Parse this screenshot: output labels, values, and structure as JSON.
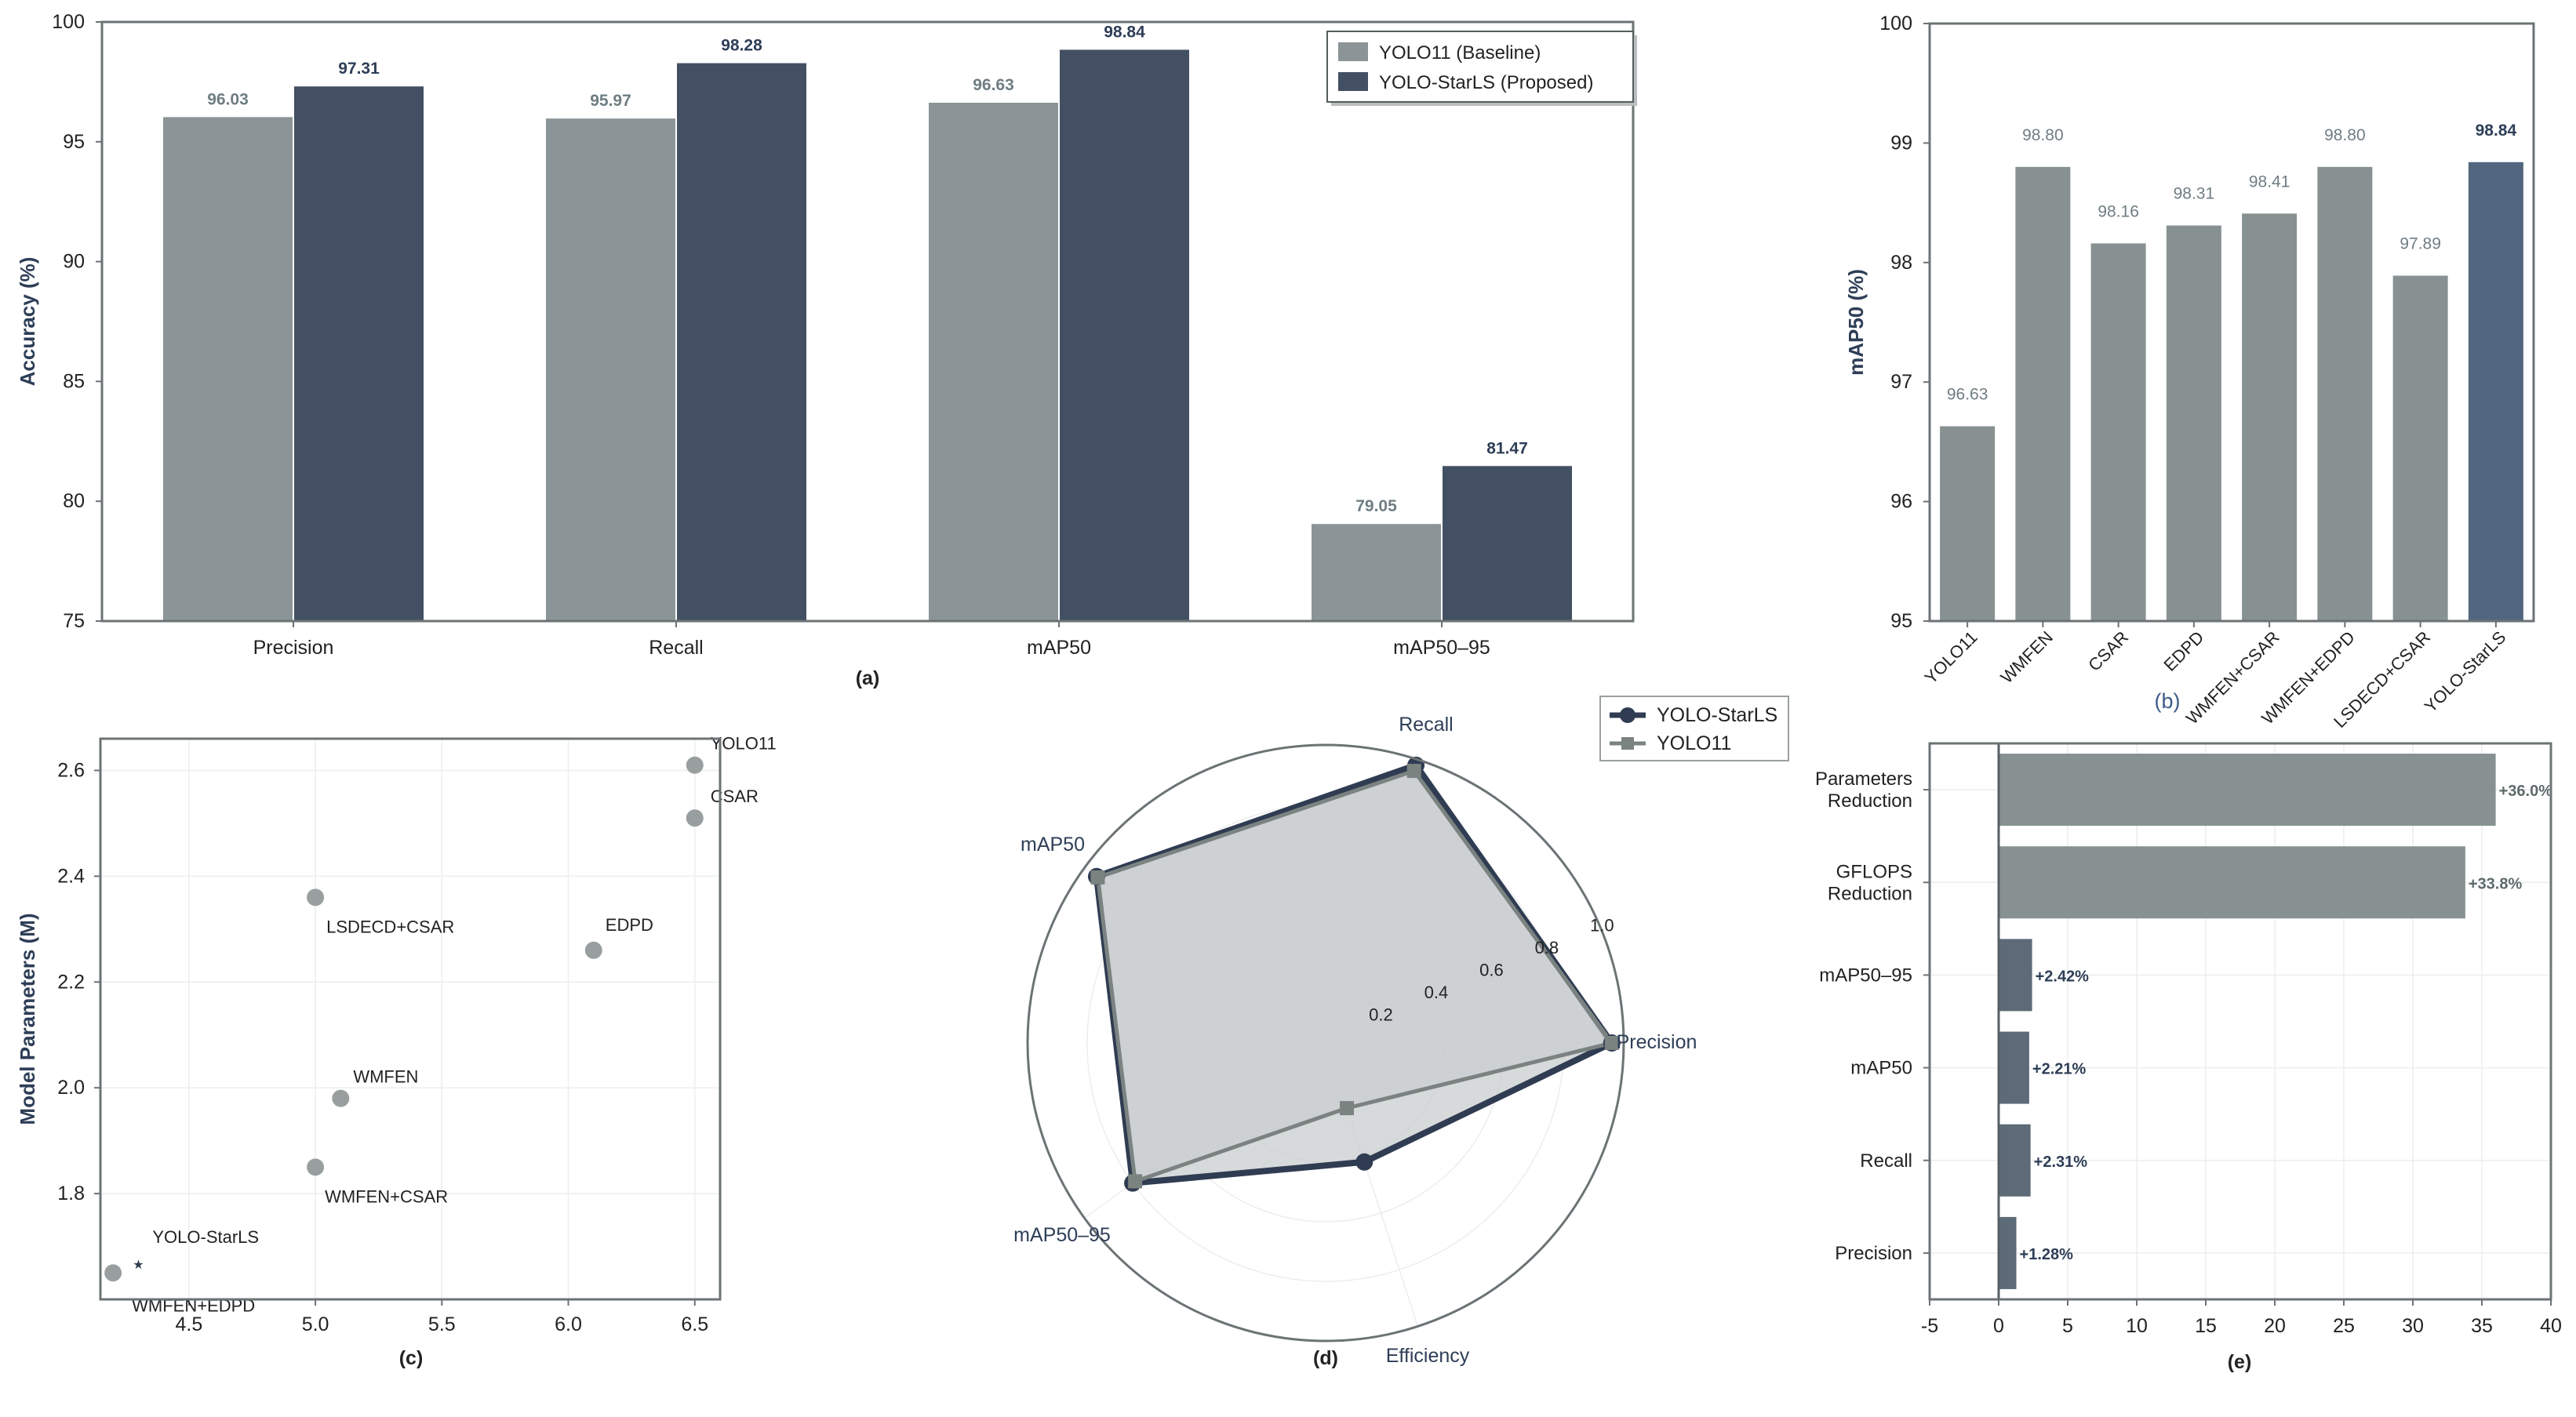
{
  "colors": {
    "baseline": "#8b9497",
    "proposed": "#434f62",
    "ablation": "#879191",
    "highlight": "#52667f",
    "axis_label": "#2e3e57",
    "frame": "#6b7375",
    "grid": "#eceeee",
    "radar_fill": "#c6cacc",
    "radar_yolo11": "#7b8381",
    "radar_starls": "#2f3c52",
    "bar_small": "#5d6a78",
    "scatter_point": "#999f9f"
  },
  "chart_data": [
    {
      "id": "a",
      "type": "bar",
      "caption": "(a)",
      "ylabel": "Accuracy (%)",
      "ylim": [
        75,
        100
      ],
      "yticks": [
        75,
        80,
        85,
        90,
        95,
        100
      ],
      "categories": [
        "Precision",
        "Recall",
        "mAP50",
        "mAP50–95"
      ],
      "series": [
        {
          "name": "YOLO11 (Baseline)",
          "values": [
            96.03,
            95.97,
            96.63,
            79.05
          ],
          "labels": [
            "96.03",
            "95.97",
            "96.63",
            "79.05"
          ]
        },
        {
          "name": "YOLO-StarLS (Proposed)",
          "values": [
            97.31,
            98.28,
            98.84,
            81.47
          ],
          "labels": [
            "97.31",
            "98.28",
            "98.84",
            "81.47"
          ]
        }
      ],
      "legend": "top-right"
    },
    {
      "id": "b",
      "type": "bar",
      "caption": "(b)",
      "ylabel": "mAP50 (%)",
      "ylim": [
        95,
        100
      ],
      "yticks": [
        95,
        96,
        97,
        98,
        99,
        100
      ],
      "categories": [
        "YOLO11",
        "WMFEN",
        "CSAR",
        "EDPD",
        "WMFEN+CSAR",
        "WMFEN+EDPD",
        "LSDECD+CSAR",
        "YOLO-StarLS"
      ],
      "values": [
        96.63,
        98.8,
        98.16,
        98.31,
        98.41,
        98.8,
        97.89,
        98.84
      ],
      "labels": [
        "96.63",
        "98.80",
        "98.16",
        "98.31",
        "98.41",
        "98.80",
        "97.89",
        "98.84"
      ],
      "highlight_index": 7
    },
    {
      "id": "c",
      "type": "scatter",
      "caption": "(c)",
      "ylabel": "Model Parameters (M)",
      "xlim": [
        4.15,
        6.6
      ],
      "ylim": [
        1.6,
        2.66
      ],
      "xticks": [
        4.5,
        5.0,
        5.5,
        6.0,
        6.5
      ],
      "xtick_labels": [
        "4.5",
        "5.0",
        "5.5",
        "6.0",
        "6.5"
      ],
      "yticks": [
        1.8,
        2.0,
        2.2,
        2.4,
        2.6
      ],
      "ytick_labels": [
        "1.8",
        "2.0",
        "2.2",
        "2.4",
        "2.6"
      ],
      "points": [
        {
          "name": "YOLO11",
          "x": 6.5,
          "y": 2.61,
          "marker": "circle"
        },
        {
          "name": "CSAR",
          "x": 6.5,
          "y": 2.51,
          "marker": "circle"
        },
        {
          "name": "LSDECD+CSAR",
          "x": 5.0,
          "y": 2.36,
          "marker": "circle"
        },
        {
          "name": "EDPD",
          "x": 6.1,
          "y": 2.26,
          "marker": "circle"
        },
        {
          "name": "WMFEN",
          "x": 5.1,
          "y": 1.98,
          "marker": "circle"
        },
        {
          "name": "WMFEN+CSAR",
          "x": 5.0,
          "y": 1.85,
          "marker": "circle"
        },
        {
          "name": "YOLO-StarLS",
          "x": 4.3,
          "y": 1.67,
          "marker": "star"
        },
        {
          "name": "WMFEN+EDPD",
          "x": 4.2,
          "y": 1.65,
          "marker": "circle"
        }
      ]
    },
    {
      "id": "d",
      "type": "radar",
      "caption": "(d)",
      "axes": [
        "Precision",
        "Recall",
        "mAP50",
        "mAP50–95",
        "Efficiency"
      ],
      "rmax": 1.0,
      "rticks": [
        "0.2",
        "0.4",
        "0.6",
        "0.8",
        "1.0"
      ],
      "series": [
        {
          "name": "YOLO-StarLS",
          "marker": "circle",
          "values": [
            0.96,
            0.98,
            0.95,
            0.8,
            0.42
          ]
        },
        {
          "name": "YOLO11",
          "marker": "square",
          "values": [
            0.96,
            0.96,
            0.945,
            0.79,
            0.23
          ]
        }
      ],
      "legend": "top-right"
    },
    {
      "id": "e",
      "type": "barh",
      "caption": "(e)",
      "xlim": [
        -5,
        40
      ],
      "xticks": [
        "-5",
        "0",
        "5",
        "10",
        "15",
        "20",
        "25",
        "30",
        "35",
        "40"
      ],
      "categories": [
        [
          "Parameters",
          "Reduction"
        ],
        [
          "GFLOPS",
          "Reduction"
        ],
        [
          "mAP50–95"
        ],
        [
          "mAP50"
        ],
        [
          "Recall"
        ],
        [
          "Precision"
        ]
      ],
      "values": [
        36.0,
        33.8,
        2.42,
        2.21,
        2.31,
        1.28
      ],
      "labels": [
        "+36.0%",
        "+33.8%",
        "+2.42%",
        "+2.21%",
        "+2.31%",
        "+1.28%"
      ]
    }
  ]
}
